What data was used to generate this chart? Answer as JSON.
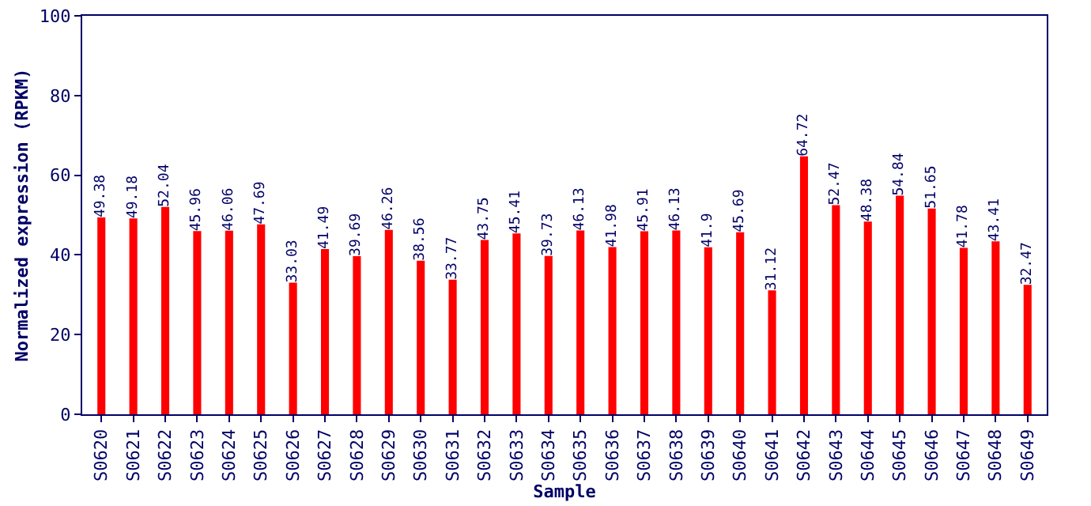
{
  "chart_data": {
    "type": "bar",
    "xlabel": "Sample",
    "ylabel": "Normalized expression (RPKM)",
    "categories": [
      "S0620",
      "S0621",
      "S0622",
      "S0623",
      "S0624",
      "S0625",
      "S0626",
      "S0627",
      "S0628",
      "S0629",
      "S0630",
      "S0631",
      "S0632",
      "S0633",
      "S0634",
      "S0635",
      "S0636",
      "S0637",
      "S0638",
      "S0639",
      "S0640",
      "S0641",
      "S0642",
      "S0643",
      "S0644",
      "S0645",
      "S0646",
      "S0647",
      "S0648",
      "S0649"
    ],
    "values": [
      49.38,
      49.18,
      52.04,
      45.96,
      46.06,
      47.69,
      33.03,
      41.49,
      39.69,
      46.26,
      38.56,
      33.77,
      43.75,
      45.41,
      39.73,
      46.13,
      41.98,
      45.91,
      46.13,
      41.9,
      45.69,
      31.12,
      64.72,
      52.47,
      48.38,
      54.84,
      51.65,
      41.78,
      43.41,
      32.47
    ],
    "color": "#ff0000",
    "data_labels": true,
    "ylim": [
      0,
      100
    ],
    "yticks": [
      0,
      20,
      40,
      60,
      80,
      100
    ],
    "grid": false,
    "legend": false
  }
}
